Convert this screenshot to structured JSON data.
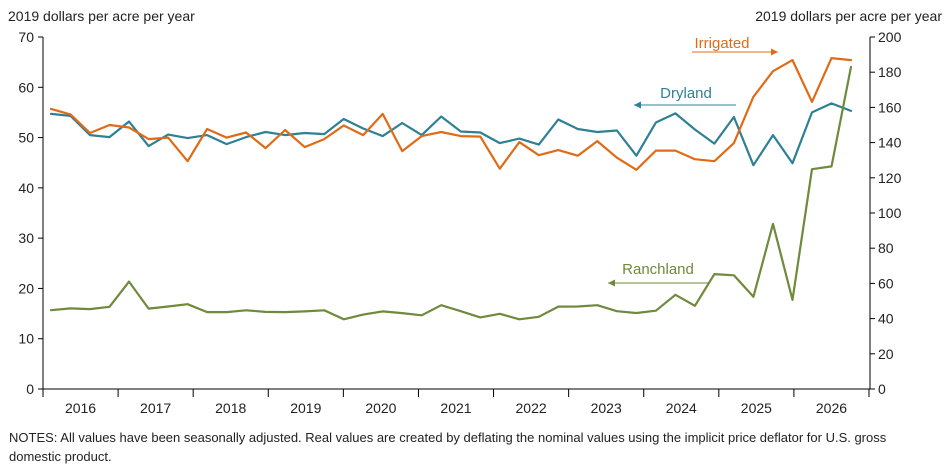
{
  "header": {
    "left_axis_title": "2019 dollars per acre per year",
    "right_axis_title": "2019 dollars per acre per year"
  },
  "notes": "NOTES: All values have been seasonally adjusted. Real values are created by deflating the nominal values using the implicit price deflator for U.S. gross domestic product.",
  "colors": {
    "Dryland": "#2E8095",
    "Irrigated": "#E06B16",
    "Ranchland": "#6E8A3A",
    "axis": "#000000"
  },
  "chart_data": {
    "type": "line",
    "x_labels": [
      "2016",
      "2017",
      "2018",
      "2019",
      "2020",
      "2021",
      "2022",
      "2023",
      "2024",
      "2025",
      "2026"
    ],
    "left_axis": {
      "ylim": [
        0,
        70
      ],
      "ticks": [
        0,
        10,
        20,
        30,
        40,
        50,
        60,
        70
      ]
    },
    "right_axis": {
      "ylim": [
        0,
        200
      ],
      "ticks": [
        0,
        20,
        40,
        60,
        80,
        100,
        120,
        140,
        160,
        180,
        200
      ]
    },
    "grid": false,
    "series": [
      {
        "name": "Dryland",
        "axis": "left",
        "values": [
          54.7,
          54.3,
          50.5,
          50.1,
          53.2,
          48.3,
          50.6,
          49.9,
          50.5,
          48.7,
          50.1,
          51.1,
          50.5,
          50.9,
          50.7,
          53.7,
          51.8,
          50.3,
          52.9,
          50.5,
          54.2,
          51.2,
          51.0,
          48.9,
          49.8,
          48.6,
          53.6,
          51.7,
          51.1,
          51.4,
          46.4,
          53.0,
          54.8,
          51.6,
          48.8,
          54.1,
          44.5,
          50.5,
          44.9,
          55.0,
          56.8,
          55.3
        ]
      },
      {
        "name": "Irrigated",
        "axis": "left",
        "values": [
          55.7,
          54.6,
          50.9,
          52.5,
          52.0,
          49.7,
          50.0,
          45.3,
          51.7,
          50.0,
          51.0,
          47.9,
          51.5,
          48.1,
          49.7,
          52.4,
          50.5,
          54.7,
          47.3,
          50.3,
          51.1,
          50.3,
          50.2,
          43.8,
          49.1,
          46.5,
          47.5,
          46.4,
          49.3,
          46.0,
          43.6,
          47.4,
          47.4,
          45.7,
          45.3,
          48.9,
          58.1,
          63.2,
          65.4,
          57.1,
          65.8,
          65.4
        ]
      },
      {
        "name": "Ranchland",
        "axis": "right",
        "values": [
          44.8,
          45.8,
          45.4,
          46.7,
          61.0,
          45.7,
          46.9,
          48.2,
          43.7,
          43.7,
          44.7,
          43.8,
          43.7,
          44.1,
          44.7,
          39.6,
          42.3,
          44.1,
          43.1,
          41.9,
          47.6,
          44.2,
          40.7,
          42.7,
          39.6,
          41.0,
          46.8,
          46.9,
          47.6,
          44.2,
          43.2,
          44.5,
          53.5,
          47.3,
          65.3,
          64.6,
          52.4,
          93.8,
          50.6,
          124.9,
          126.5,
          183.0
        ]
      }
    ],
    "annotations": [
      {
        "text": "Irrigated",
        "series": "Irrigated",
        "arrow": "right"
      },
      {
        "text": "Dryland",
        "series": "Dryland",
        "arrow": "left"
      },
      {
        "text": "Ranchland",
        "series": "Ranchland",
        "arrow": "left"
      }
    ]
  }
}
